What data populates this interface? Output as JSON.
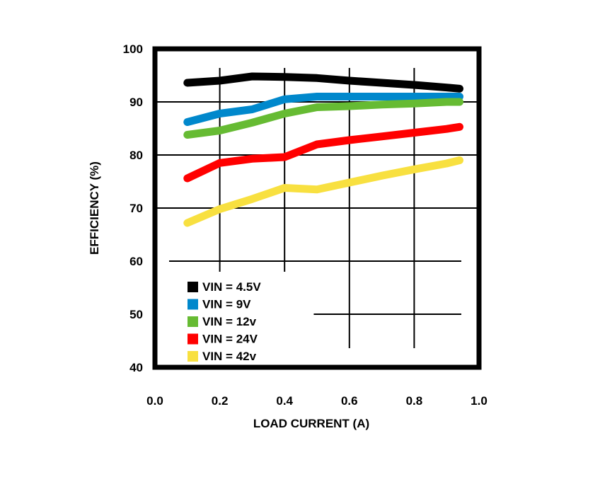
{
  "chart_data": {
    "type": "line",
    "xlabel": "LOAD CURRENT (A)",
    "ylabel": "EFFICIENCY (%)",
    "xlim": [
      0.0,
      1.0
    ],
    "ylim": [
      40,
      100
    ],
    "xticks": [
      "0.0",
      "0.2",
      "0.4",
      "0.6",
      "0.8",
      "1.0"
    ],
    "yticks": [
      "40",
      "50",
      "60",
      "70",
      "80",
      "90",
      "100"
    ],
    "grid": true,
    "legend_position": "bottom-left",
    "series": [
      {
        "name": "VIN = 4.5V",
        "color": "#000000",
        "x": [
          0.1,
          0.2,
          0.3,
          0.4,
          0.5,
          0.6,
          0.7,
          0.8,
          0.9,
          0.94
        ],
        "y": [
          93.6,
          94.0,
          94.8,
          94.7,
          94.5,
          94.0,
          93.6,
          93.2,
          92.7,
          92.5
        ]
      },
      {
        "name": "VIN = 9V",
        "color": "#0088cc",
        "x": [
          0.1,
          0.2,
          0.3,
          0.4,
          0.5,
          0.6,
          0.7,
          0.8,
          0.9,
          0.94
        ],
        "y": [
          86.2,
          87.8,
          88.6,
          90.5,
          91.0,
          91.0,
          91.0,
          91.0,
          91.0,
          91.0
        ]
      },
      {
        "name": "VIN = 12v",
        "color": "#66bb33",
        "x": [
          0.1,
          0.2,
          0.3,
          0.4,
          0.5,
          0.6,
          0.7,
          0.8,
          0.9,
          0.94
        ],
        "y": [
          83.8,
          84.6,
          86.1,
          87.8,
          89.0,
          89.2,
          89.5,
          89.7,
          90.0,
          90.0
        ]
      },
      {
        "name": "VIN = 24V",
        "color": "#ff0000",
        "x": [
          0.1,
          0.2,
          0.3,
          0.4,
          0.5,
          0.6,
          0.7,
          0.8,
          0.9,
          0.94
        ],
        "y": [
          75.6,
          78.5,
          79.3,
          79.6,
          82.0,
          82.8,
          83.5,
          84.2,
          84.9,
          85.3
        ]
      },
      {
        "name": "VIN = 42v",
        "color": "#f8e040",
        "x": [
          0.1,
          0.2,
          0.3,
          0.4,
          0.5,
          0.6,
          0.7,
          0.8,
          0.9,
          0.94
        ],
        "y": [
          67.2,
          69.8,
          71.7,
          73.8,
          73.5,
          74.8,
          76.1,
          77.3,
          78.4,
          79.0
        ]
      }
    ]
  }
}
